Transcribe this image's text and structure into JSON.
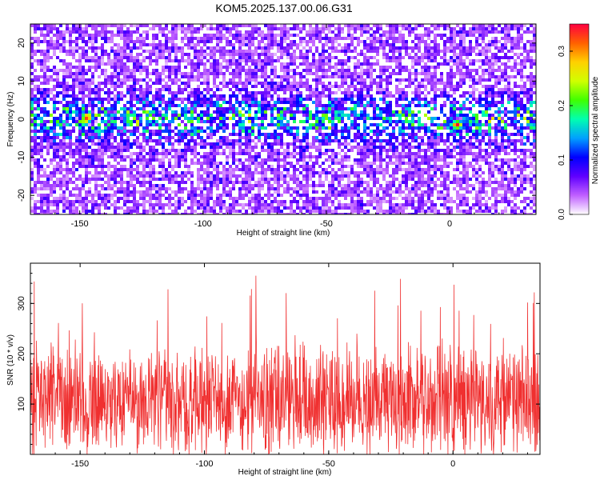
{
  "title": "KOM5.2025.137.00.06.G31",
  "chart_data": [
    {
      "type": "heatmap",
      "xlabel": "Height of straight line (km)",
      "ylabel": "Frequency (Hz)",
      "xlim": [
        -170,
        35
      ],
      "ylim": [
        -25,
        25
      ],
      "xticks": [
        -150,
        -100,
        -50,
        0
      ],
      "yticks": [
        -20,
        -10,
        0,
        10,
        20
      ],
      "colorbar": {
        "label": "Normalized spectral amplitude",
        "range": [
          0,
          0.35
        ],
        "ticks": [
          "0.0",
          "0.1",
          "0.2",
          "0.3"
        ],
        "colors": [
          "#ffffff",
          "#c060ff",
          "#6000ff",
          "#0000ff",
          "#00a0ff",
          "#00ffb0",
          "#40ff00",
          "#d0ff00",
          "#ffd000",
          "#ff6000",
          "#ff0040"
        ]
      },
      "band": {
        "center_hz": 0,
        "half_width_hz": 5
      },
      "peaks": [
        {
          "x": -147,
          "y": 0.5,
          "value": 0.35
        },
        {
          "x": 3,
          "y": -1.5,
          "value": 0.35
        }
      ]
    },
    {
      "type": "line",
      "xlabel": "Height of straight line (km)",
      "ylabel": "SNR (10 * v/v)",
      "xlim": [
        -170,
        35
      ],
      "ylim": [
        0,
        380
      ],
      "xticks": [
        -150,
        -100,
        -50,
        0
      ],
      "yticks": [
        100,
        200,
        300
      ],
      "color": "#f03030",
      "baseline": 105,
      "max": 370
    }
  ]
}
